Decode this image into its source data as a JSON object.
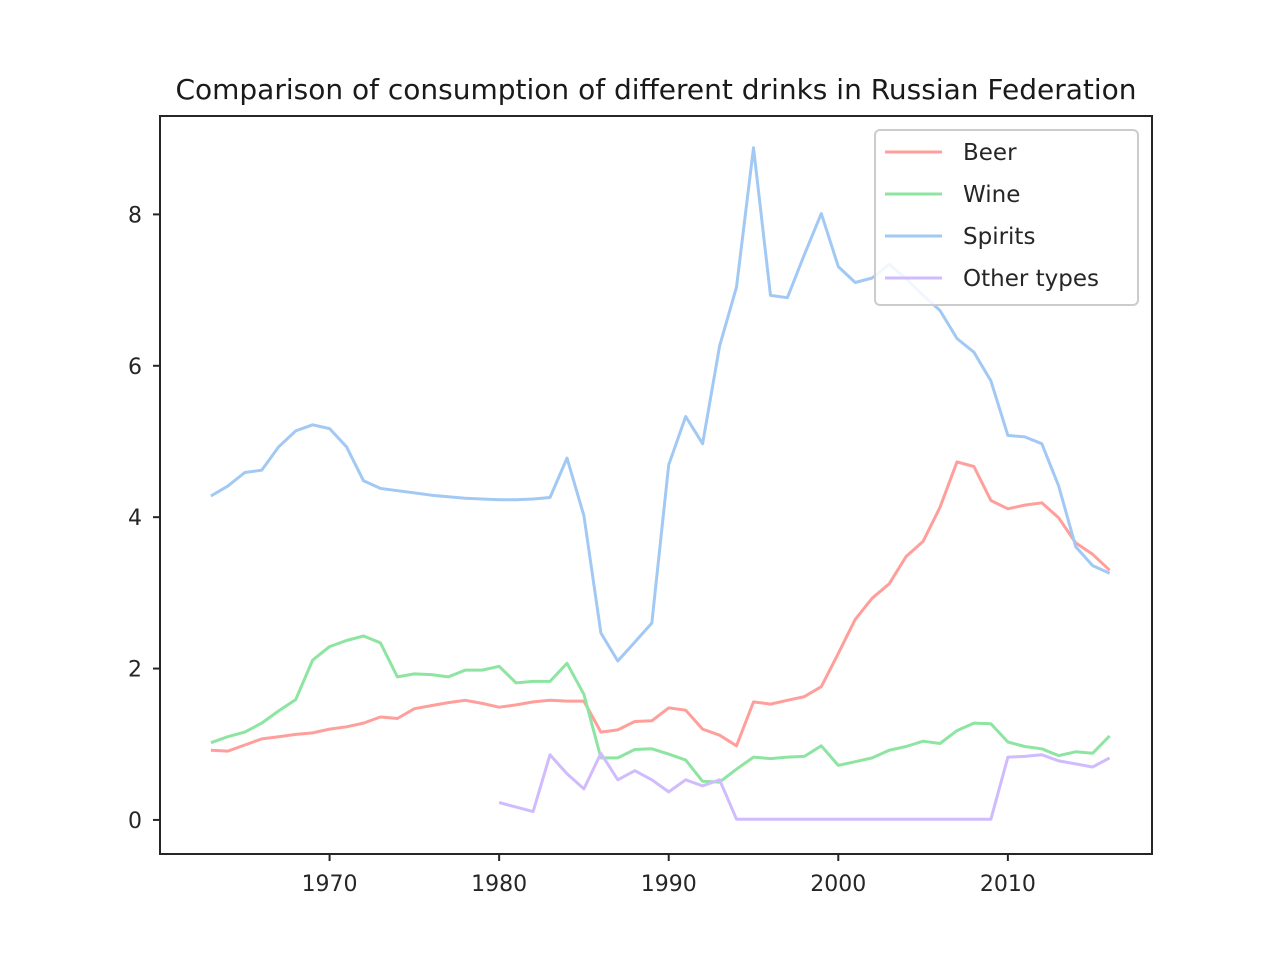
{
  "chart_data": {
    "type": "line",
    "title": "Comparison of consumption of different drinks in Russian Federation",
    "xlabel": "",
    "ylabel": "",
    "xlim": [
      1960,
      2018.5
    ],
    "ylim": [
      -0.45,
      9.3
    ],
    "xticks": [
      1970,
      1980,
      1990,
      2000,
      2010
    ],
    "yticks": [
      0,
      2,
      4,
      6,
      8
    ],
    "grid": false,
    "legend_position": "top-right",
    "series": [
      {
        "name": "Beer",
        "color": "#ff9f9b",
        "x": [
          1963,
          1964,
          1965,
          1966,
          1967,
          1968,
          1969,
          1970,
          1971,
          1972,
          1973,
          1974,
          1975,
          1976,
          1977,
          1978,
          1979,
          1980,
          1981,
          1982,
          1983,
          1984,
          1985,
          1986,
          1987,
          1988,
          1989,
          1990,
          1991,
          1992,
          1993,
          1994,
          1995,
          1996,
          1997,
          1998,
          1999,
          2000,
          2001,
          2002,
          2003,
          2004,
          2005,
          2006,
          2007,
          2008,
          2009,
          2010,
          2011,
          2012,
          2013,
          2014,
          2015,
          2016
        ],
        "values": [
          0.92,
          0.91,
          0.99,
          1.07,
          1.1,
          1.13,
          1.15,
          1.2,
          1.23,
          1.28,
          1.36,
          1.34,
          1.47,
          1.51,
          1.55,
          1.58,
          1.54,
          1.49,
          1.52,
          1.56,
          1.58,
          1.57,
          1.57,
          1.16,
          1.19,
          1.3,
          1.31,
          1.48,
          1.45,
          1.2,
          1.12,
          0.98,
          1.56,
          1.53,
          1.58,
          1.63,
          1.76,
          2.2,
          2.65,
          2.93,
          3.12,
          3.48,
          3.68,
          4.13,
          4.73,
          4.67,
          4.22,
          4.11,
          4.16,
          4.19,
          3.99,
          3.66,
          3.51,
          3.3
        ]
      },
      {
        "name": "Wine",
        "color": "#8de5a1",
        "x": [
          1963,
          1964,
          1965,
          1966,
          1967,
          1968,
          1969,
          1970,
          1971,
          1972,
          1973,
          1974,
          1975,
          1976,
          1977,
          1978,
          1979,
          1980,
          1981,
          1982,
          1983,
          1984,
          1985,
          1986,
          1987,
          1988,
          1989,
          1990,
          1991,
          1992,
          1993,
          1994,
          1995,
          1996,
          1997,
          1998,
          1999,
          2000,
          2001,
          2002,
          2003,
          2004,
          2005,
          2006,
          2007,
          2008,
          2009,
          2010,
          2011,
          2012,
          2013,
          2014,
          2015,
          2016
        ],
        "values": [
          1.02,
          1.1,
          1.16,
          1.28,
          1.44,
          1.59,
          2.11,
          2.29,
          2.37,
          2.43,
          2.34,
          1.89,
          1.93,
          1.92,
          1.89,
          1.98,
          1.98,
          2.03,
          1.81,
          1.83,
          1.83,
          2.07,
          1.66,
          0.82,
          0.82,
          0.93,
          0.94,
          0.87,
          0.79,
          0.51,
          0.5,
          0.67,
          0.83,
          0.81,
          0.83,
          0.84,
          0.98,
          0.72,
          0.77,
          0.82,
          0.92,
          0.97,
          1.04,
          1.01,
          1.18,
          1.28,
          1.27,
          1.03,
          0.97,
          0.94,
          0.85,
          0.9,
          0.88,
          1.11
        ]
      },
      {
        "name": "Spirits",
        "color": "#a1c9f4",
        "x": [
          1963,
          1964,
          1965,
          1966,
          1967,
          1968,
          1969,
          1970,
          1971,
          1972,
          1973,
          1974,
          1975,
          1976,
          1977,
          1978,
          1979,
          1980,
          1981,
          1982,
          1983,
          1984,
          1985,
          1986,
          1987,
          1988,
          1989,
          1990,
          1991,
          1992,
          1993,
          1994,
          1995,
          1996,
          1997,
          1998,
          1999,
          2000,
          2001,
          2002,
          2003,
          2004,
          2005,
          2006,
          2007,
          2008,
          2009,
          2010,
          2011,
          2012,
          2013,
          2014,
          2015,
          2016
        ],
        "values": [
          4.28,
          4.41,
          4.59,
          4.62,
          4.93,
          5.14,
          5.22,
          5.17,
          4.93,
          4.48,
          4.38,
          4.35,
          4.32,
          4.29,
          4.27,
          4.25,
          4.24,
          4.23,
          4.23,
          4.24,
          4.26,
          4.78,
          4.02,
          2.47,
          2.1,
          2.35,
          2.6,
          4.69,
          5.33,
          4.97,
          6.26,
          7.04,
          8.88,
          6.93,
          6.9,
          7.47,
          8.01,
          7.31,
          7.1,
          7.16,
          7.34,
          7.15,
          6.93,
          6.73,
          6.36,
          6.18,
          5.8,
          5.08,
          5.06,
          4.97,
          4.41,
          3.61,
          3.36,
          3.26
        ]
      },
      {
        "name": "Other types",
        "color": "#d0bbff",
        "x": [
          1980,
          1981,
          1982,
          1983,
          1984,
          1985,
          1986,
          1987,
          1988,
          1989,
          1990,
          1991,
          1992,
          1993,
          1994,
          1995,
          1996,
          1997,
          1998,
          1999,
          2000,
          2001,
          2002,
          2003,
          2004,
          2005,
          2006,
          2007,
          2008,
          2009,
          2010,
          2011,
          2012,
          2013,
          2014,
          2015,
          2016
        ],
        "values": [
          0.23,
          0.17,
          0.11,
          0.86,
          0.61,
          0.41,
          0.88,
          0.53,
          0.65,
          0.53,
          0.37,
          0.53,
          0.45,
          0.53,
          0.01,
          0.01,
          0.01,
          0.01,
          0.01,
          0.01,
          0.01,
          0.01,
          0.01,
          0.01,
          0.01,
          0.01,
          0.01,
          0.01,
          0.01,
          0.01,
          0.83,
          0.84,
          0.86,
          0.78,
          0.74,
          0.7,
          0.82
        ]
      }
    ]
  }
}
